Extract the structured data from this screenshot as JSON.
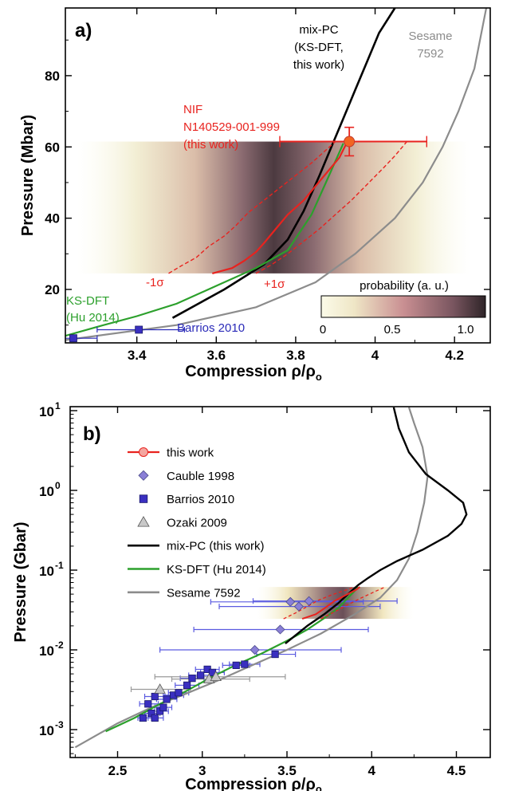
{
  "chart_data": [
    {
      "panel_label": "a)",
      "type": "line",
      "xlabel": "Compression ρ/ρ",
      "xlabel_sub": "o",
      "ylabel": "Pressure (Mbar)",
      "xlim": [
        3.22,
        4.29
      ],
      "ylim": [
        5,
        99
      ],
      "xticks": [
        3.4,
        3.6,
        3.8,
        4.0,
        4.2
      ],
      "xtick_labels": [
        "3.4",
        "3.6",
        "3.8",
        "4",
        "4.2"
      ],
      "yticks": [
        20,
        40,
        60,
        80
      ],
      "ytick_labels": [
        "20",
        "40",
        "60",
        "80"
      ],
      "colors": {
        "nif": "#e8231f",
        "mixpc": "#000000",
        "sesame": "#8c8c8c",
        "ksdft": "#2ca02c",
        "barrios": "#2a2ab8"
      },
      "probability_band": {
        "p_min": 24.5,
        "p_max": 61.5
      },
      "series": [
        {
          "id": "mixpc",
          "x": [
            3.49,
            3.62,
            3.72,
            3.78,
            3.82,
            3.86,
            3.89,
            3.92,
            3.95,
            3.98,
            4.01,
            4.05
          ],
          "y": [
            12,
            20,
            27,
            34,
            42,
            52,
            60,
            68,
            76,
            84,
            92,
            99
          ]
        },
        {
          "id": "sesame",
          "x": [
            3.2,
            3.5,
            3.7,
            3.85,
            3.95,
            4.05,
            4.12,
            4.17,
            4.21,
            4.25,
            4.28
          ],
          "y": [
            5.5,
            10,
            15,
            22,
            30,
            40,
            50,
            60,
            70,
            82,
            99
          ]
        },
        {
          "id": "ksdft",
          "x": [
            3.22,
            3.3,
            3.4,
            3.5,
            3.6,
            3.7,
            3.78,
            3.84,
            3.88,
            3.92
          ],
          "y": [
            7,
            9.5,
            12.5,
            16,
            21,
            26,
            31,
            41,
            51,
            61
          ]
        },
        {
          "id": "nif-mean",
          "x": [
            3.59,
            3.64,
            3.67,
            3.7,
            3.72,
            3.75,
            3.78,
            3.82,
            3.85,
            3.88,
            3.91,
            3.93
          ],
          "y": [
            24.5,
            26,
            28,
            30.5,
            33,
            37,
            41,
            45,
            49,
            53,
            57,
            61.5
          ]
        },
        {
          "id": "nif-minus",
          "x": [
            3.48,
            3.51,
            3.55,
            3.58,
            3.62,
            3.65,
            3.68,
            3.72,
            3.76,
            3.8,
            3.84,
            3.87,
            3.9
          ],
          "y": [
            24.5,
            26.5,
            29,
            32,
            35,
            38,
            41.5,
            45,
            48.5,
            52,
            55.5,
            58.5,
            61.5
          ]
        },
        {
          "id": "nif-plus",
          "x": [
            3.7,
            3.74,
            3.78,
            3.82,
            3.86,
            3.9,
            3.94,
            3.98,
            4.02,
            4.05,
            4.08
          ],
          "y": [
            24.5,
            27,
            30,
            33.5,
            37,
            41,
            45,
            49.5,
            54,
            57.5,
            61.5
          ]
        }
      ],
      "points": [
        {
          "id": "nif-point",
          "x": 3.935,
          "y": 61.5,
          "xerr_lo": 3.76,
          "xerr_hi": 4.13,
          "yerr": 4
        },
        {
          "id": "barrios-1",
          "x": 3.24,
          "y": 6.3,
          "xerr_lo": 3.2,
          "xerr_hi": 3.3
        },
        {
          "id": "barrios-2",
          "x": 3.405,
          "y": 8.7,
          "xerr_lo": 3.3,
          "xerr_hi": 3.52
        }
      ],
      "annotations": {
        "mixpc": [
          "mix-PC",
          "(KS-DFT,",
          "this work)"
        ],
        "sesame": [
          "Sesame",
          "7592"
        ],
        "nif": [
          "NIF",
          "N140529-001-999",
          "(this work)"
        ],
        "ksdft": [
          "KS-DFT",
          "(Hu 2014)"
        ],
        "barrios": "Barrios 2010",
        "minus_sigma": "-1σ",
        "plus_sigma": "+1σ"
      },
      "colorbar": {
        "title": "probability (a. u.)",
        "ticks": [
          "0",
          "0.5",
          "1.0"
        ]
      }
    },
    {
      "panel_label": "b)",
      "type": "scatter",
      "xlabel": "Compression ρ/ρ",
      "xlabel_sub": "o",
      "ylabel": "Pressure (Gbar)",
      "log_y": true,
      "xlim": [
        2.22,
        4.7
      ],
      "ylim_log10": [
        -3.35,
        1.05
      ],
      "xticks": [
        2.5,
        3.0,
        3.5,
        4.0,
        4.5
      ],
      "xtick_labels": [
        "2.5",
        "3",
        "3.5",
        "4",
        "4.5"
      ],
      "ytick_exponents": [
        -3,
        -2,
        -1,
        0,
        1
      ],
      "legend_position": "top-left",
      "legend": [
        {
          "id": "this-work",
          "label": "this work"
        },
        {
          "id": "cauble",
          "label": "Cauble 1998"
        },
        {
          "id": "barrios",
          "label": "Barrios 2010"
        },
        {
          "id": "ozaki",
          "label": "Ozaki 2009"
        },
        {
          "id": "mixpc",
          "label": "mix-PC (this work)"
        },
        {
          "id": "ksdft",
          "label": "KS-DFT (Hu 2014)"
        },
        {
          "id": "sesame",
          "label": "Sesame 7592"
        }
      ],
      "colors": {
        "this-work": "#e8231f",
        "cauble": "#8a7fd6",
        "barrios": "#3a2fc0",
        "ozaki": "#c8c8c8",
        "mixpc": "#000000",
        "ksdft": "#2ca02c",
        "sesame": "#8c8c8c",
        "errbar-blue": "#5a5ae0",
        "errbar-gray": "#9a9a9a"
      },
      "probability_band": {
        "p_min": 0.0245,
        "p_max": 0.0615
      },
      "series": [
        {
          "id": "sesame",
          "x": [
            2.25,
            2.5,
            2.7,
            2.9,
            3.1,
            3.3,
            3.5,
            3.7,
            3.9,
            4.05,
            4.15,
            4.22,
            4.27,
            4.31,
            4.33,
            4.3,
            4.25,
            4.22
          ],
          "y": [
            0.0006,
            0.0012,
            0.0019,
            0.0028,
            0.0042,
            0.0065,
            0.01,
            0.016,
            0.028,
            0.045,
            0.075,
            0.14,
            0.3,
            0.7,
            1.5,
            3.5,
            7,
            11
          ]
        },
        {
          "id": "ksdft",
          "x": [
            2.43,
            2.6,
            2.75,
            2.9,
            3.05,
            3.2,
            3.35,
            3.5,
            3.62,
            3.72,
            3.8,
            3.86,
            3.92
          ],
          "y": [
            0.00095,
            0.0014,
            0.0021,
            0.003,
            0.0045,
            0.0065,
            0.009,
            0.013,
            0.018,
            0.025,
            0.033,
            0.045,
            0.061
          ]
        },
        {
          "id": "mixpc",
          "x": [
            3.49,
            3.62,
            3.72,
            3.8,
            3.86,
            3.92,
            3.98,
            4.05,
            4.15,
            4.3,
            4.45,
            4.53,
            4.56,
            4.54,
            4.45,
            4.32,
            4.22,
            4.16,
            4.13
          ],
          "y": [
            0.012,
            0.02,
            0.028,
            0.038,
            0.05,
            0.065,
            0.08,
            0.1,
            0.13,
            0.18,
            0.27,
            0.38,
            0.5,
            0.7,
            1.0,
            1.6,
            3.0,
            6.0,
            11
          ]
        },
        {
          "id": "nif-mean",
          "x": [
            3.59,
            3.67,
            3.72,
            3.78,
            3.85,
            3.91,
            3.93
          ],
          "y": [
            0.0245,
            0.028,
            0.033,
            0.041,
            0.049,
            0.057,
            0.0615
          ]
        },
        {
          "id": "nif-minus",
          "x": [
            3.48,
            3.55,
            3.62,
            3.68,
            3.76,
            3.84,
            3.9
          ],
          "y": [
            0.0245,
            0.029,
            0.035,
            0.0415,
            0.0485,
            0.0555,
            0.0615
          ]
        },
        {
          "id": "nif-plus",
          "x": [
            3.7,
            3.78,
            3.86,
            3.94,
            4.02,
            4.08
          ],
          "y": [
            0.0245,
            0.03,
            0.037,
            0.045,
            0.054,
            0.0615
          ]
        }
      ],
      "cauble": [
        {
          "x": 3.52,
          "y": 0.04,
          "xerr": [
            3.05,
            3.95
          ]
        },
        {
          "x": 3.63,
          "y": 0.041,
          "xerr": [
            3.3,
            4.15
          ]
        },
        {
          "x": 3.57,
          "y": 0.035,
          "xerr": [
            3.1,
            4.05
          ]
        },
        {
          "x": 3.46,
          "y": 0.018,
          "xerr": [
            2.95,
            3.98
          ]
        },
        {
          "x": 3.31,
          "y": 0.01,
          "xerr": [
            2.75,
            3.82
          ]
        }
      ],
      "barrios": [
        {
          "x": 2.65,
          "y": 0.0014,
          "xerr": [
            2.62,
            2.7
          ]
        },
        {
          "x": 2.7,
          "y": 0.0016,
          "xerr": [
            2.66,
            2.75
          ]
        },
        {
          "x": 2.72,
          "y": 0.0014,
          "xerr": [
            2.68,
            2.77
          ]
        },
        {
          "x": 2.75,
          "y": 0.0017,
          "xerr": [
            2.7,
            2.8
          ]
        },
        {
          "x": 2.77,
          "y": 0.0019,
          "xerr": [
            2.72,
            2.82
          ]
        },
        {
          "x": 2.68,
          "y": 0.0021,
          "xerr": [
            2.63,
            2.74
          ]
        },
        {
          "x": 2.72,
          "y": 0.0026,
          "xerr": [
            2.66,
            2.78
          ]
        },
        {
          "x": 2.79,
          "y": 0.0024,
          "xerr": [
            2.73,
            2.85
          ]
        },
        {
          "x": 2.83,
          "y": 0.0027,
          "xerr": [
            2.77,
            2.89
          ]
        },
        {
          "x": 2.86,
          "y": 0.0029,
          "xerr": [
            2.8,
            2.92
          ]
        },
        {
          "x": 2.91,
          "y": 0.0036,
          "xerr": [
            2.84,
            2.98
          ]
        },
        {
          "x": 2.94,
          "y": 0.0044,
          "xerr": [
            2.87,
            3.01
          ]
        },
        {
          "x": 2.99,
          "y": 0.0048,
          "xerr": [
            2.92,
            3.06
          ]
        },
        {
          "x": 3.03,
          "y": 0.0057,
          "xerr": [
            2.96,
            3.1
          ]
        },
        {
          "x": 3.06,
          "y": 0.0052,
          "xerr": [
            2.99,
            3.13
          ]
        },
        {
          "x": 3.2,
          "y": 0.0064,
          "xerr": [
            3.12,
            3.28
          ]
        },
        {
          "x": 3.25,
          "y": 0.0066,
          "xerr": [
            3.16,
            3.34
          ]
        },
        {
          "x": 3.43,
          "y": 0.0088,
          "xerr": [
            3.32,
            3.55
          ]
        }
      ],
      "ozaki": [
        {
          "x": 2.75,
          "y": 0.0032,
          "xerr": [
            2.58,
            2.93
          ]
        },
        {
          "x": 3.04,
          "y": 0.0043,
          "xerr": [
            2.82,
            3.28
          ]
        },
        {
          "x": 3.08,
          "y": 0.0046,
          "xerr": [
            2.72,
            3.49
          ]
        }
      ]
    }
  ]
}
